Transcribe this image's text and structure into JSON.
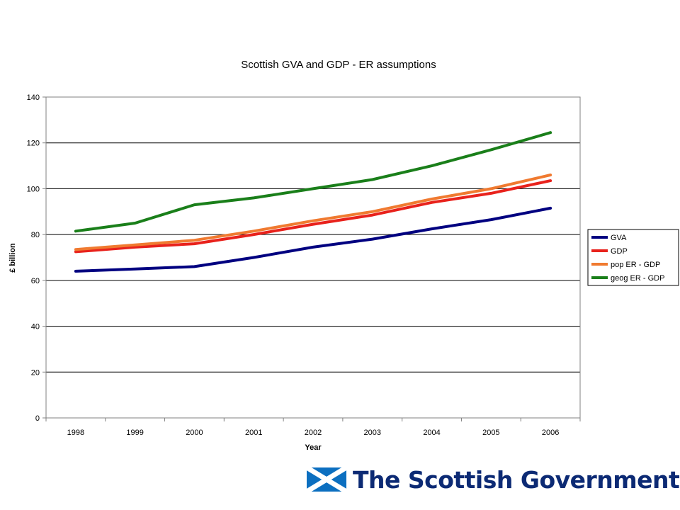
{
  "chart_data": {
    "type": "line",
    "title": "Scottish GVA and GDP - ER assumptions",
    "xlabel": "Year",
    "ylabel": "£ billion",
    "ylim": [
      0,
      140
    ],
    "yticks": [
      0,
      20,
      40,
      60,
      80,
      100,
      120,
      140
    ],
    "grid": "horizontal",
    "legend": "right",
    "categories": [
      "1998",
      "1999",
      "2000",
      "2001",
      "2002",
      "2003",
      "2004",
      "2005",
      "2006"
    ],
    "series": [
      {
        "name": "GVA",
        "color": "#000080",
        "values": [
          64,
          65,
          66,
          70,
          74.5,
          78,
          82.5,
          86.5,
          91.5
        ]
      },
      {
        "name": "GDP",
        "color": "#e8221c",
        "values": [
          72.5,
          74.5,
          76,
          80,
          84.5,
          88.5,
          94,
          98,
          103.5
        ]
      },
      {
        "name": "pop ER - GDP",
        "color": "#f07a30",
        "values": [
          73.5,
          75.5,
          77.5,
          81.5,
          86,
          90,
          95.5,
          100,
          106
        ]
      },
      {
        "name": "geog ER - GDP",
        "color": "#1a7f1a",
        "values": [
          81.5,
          85,
          93,
          96,
          100,
          104,
          110,
          117,
          124.5
        ]
      }
    ]
  },
  "branding": {
    "logo_text": "The Scottish Government",
    "flag_colors": {
      "field": "#0c6fc0",
      "saltire": "#ffffff"
    }
  }
}
